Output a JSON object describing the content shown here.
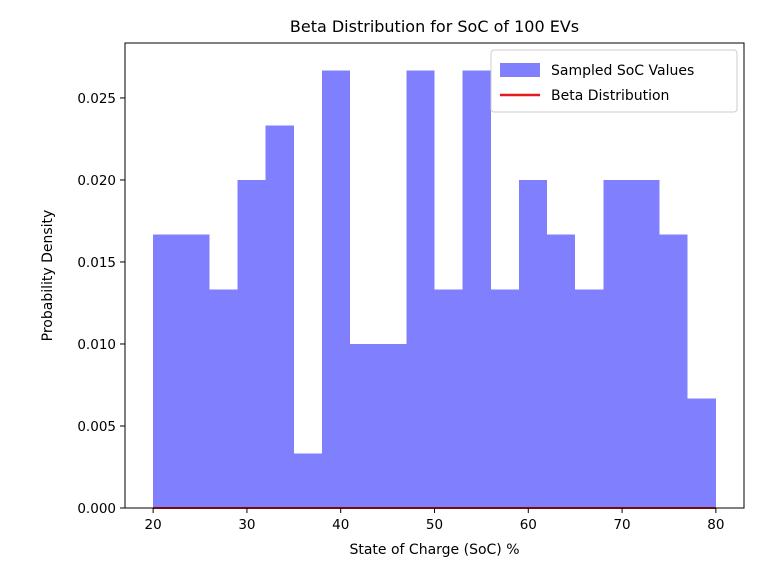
{
  "chart_data": {
    "type": "bar",
    "title": "Beta Distribution for SoC of 100 EVs",
    "xlabel": "State of Charge (SoC) %",
    "ylabel": "Probability Density",
    "xlim": [
      17,
      83
    ],
    "ylim": [
      0,
      0.02835
    ],
    "xticks": [
      20,
      30,
      40,
      50,
      60,
      70,
      80
    ],
    "yticks": [
      0.0,
      0.005,
      0.01,
      0.015,
      0.02,
      0.025
    ],
    "ytick_labels": [
      "0.000",
      "0.005",
      "0.010",
      "0.015",
      "0.020",
      "0.025"
    ],
    "grid": false,
    "legend_position": "top-right",
    "series": [
      {
        "name": "Sampled SoC Values",
        "kind": "histogram",
        "color": "#8080ff",
        "bin_edges": [
          20,
          23,
          26,
          29,
          32,
          35,
          38,
          41,
          44,
          47,
          50,
          53,
          56,
          59,
          62,
          65,
          68,
          71,
          74,
          77,
          80
        ],
        "values": [
          0.01667,
          0.01667,
          0.01333,
          0.02,
          0.02333,
          0.00333,
          0.02667,
          0.01,
          0.01,
          0.02667,
          0.01333,
          0.02667,
          0.01333,
          0.02,
          0.01667,
          0.01333,
          0.02,
          0.02,
          0.01667,
          0.00667
        ]
      },
      {
        "name": "Beta Distribution",
        "kind": "line",
        "color": "#e41a1c",
        "x": [
          20,
          30,
          40,
          50,
          60,
          70,
          80
        ],
        "y": [
          0,
          0,
          0,
          0,
          0,
          0,
          0
        ]
      }
    ]
  }
}
